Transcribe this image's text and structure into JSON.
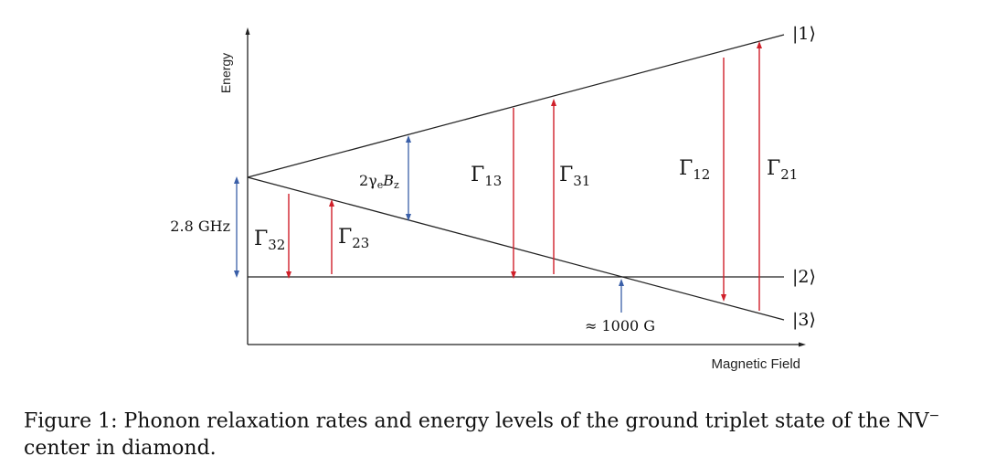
{
  "axes": {
    "ylabel": "Energy",
    "xlabel": "Magnetic Field"
  },
  "states": {
    "s1": "|1⟩",
    "s2": "|2⟩",
    "s3": "|3⟩"
  },
  "annotations": {
    "zero_field_splitting": "2.8 GHz",
    "zeeman_prefix": "2γ",
    "zeeman_e": "e",
    "zeeman_B": "B",
    "zeeman_z": "z",
    "crossing_field": "≈ 1000 G"
  },
  "rates": {
    "gamma_symbol": "Γ",
    "g32": "32",
    "g23": "23",
    "g13": "13",
    "g31": "31",
    "g12": "12",
    "g21": "21"
  },
  "colors": {
    "lines": "#222222",
    "red_arrows": "#d0202a",
    "blue_arrows": "#3a5fa8"
  },
  "caption": {
    "text": "Figure 1: Phonon relaxation rates and energy levels of the ground triplet state of the NV",
    "superscript": "−",
    "line2": "center in diamond."
  }
}
